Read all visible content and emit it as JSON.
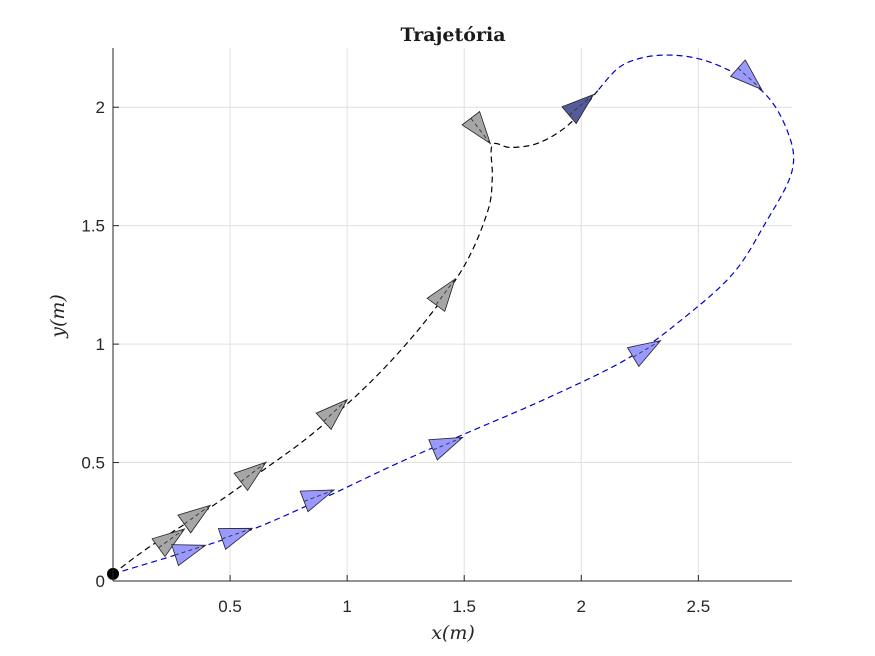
{
  "chart_data": {
    "type": "line",
    "title": "Trajetória",
    "xlabel": "x(m)",
    "ylabel": "y(m)",
    "xlim": [
      0.0,
      2.9
    ],
    "ylim": [
      0.0,
      2.25
    ],
    "grid": true,
    "x_ticks": [
      {
        "value": 0.5,
        "label": "0.5"
      },
      {
        "value": 1,
        "label": "1"
      },
      {
        "value": 1.5,
        "label": "1.5"
      },
      {
        "value": 2,
        "label": "2"
      },
      {
        "value": 2.5,
        "label": "2.5"
      }
    ],
    "y_ticks": [
      {
        "value": 0,
        "label": "0"
      },
      {
        "value": 0.5,
        "label": "0.5"
      },
      {
        "value": 1,
        "label": "1"
      },
      {
        "value": 1.5,
        "label": "1.5"
      },
      {
        "value": 2,
        "label": "2"
      }
    ],
    "start_point": {
      "x": 0.0,
      "y": 0.03,
      "color": "#000000"
    },
    "series": [
      {
        "line_color": "#000000",
        "line_style": "dashed",
        "points": [
          {
            "x": 0.0,
            "y": 0.03
          },
          {
            "x": 0.15,
            "y": 0.14
          },
          {
            "x": 0.4,
            "y": 0.3
          },
          {
            "x": 0.63,
            "y": 0.46
          },
          {
            "x": 0.85,
            "y": 0.62
          },
          {
            "x": 1.1,
            "y": 0.84
          },
          {
            "x": 1.32,
            "y": 1.08
          },
          {
            "x": 1.5,
            "y": 1.33
          },
          {
            "x": 1.6,
            "y": 1.56
          },
          {
            "x": 1.62,
            "y": 1.7
          },
          {
            "x": 1.62,
            "y": 1.84
          },
          {
            "x": 1.7,
            "y": 1.83
          },
          {
            "x": 1.82,
            "y": 1.85
          },
          {
            "x": 1.95,
            "y": 1.93
          },
          {
            "x": 2.07,
            "y": 2.07
          }
        ],
        "markers": [
          {
            "x": 0.25,
            "y": 0.18,
            "dx": 1,
            "dy": 0.72,
            "fill": "#a6a6a6"
          },
          {
            "x": 0.36,
            "y": 0.28,
            "dx": 1,
            "dy": 0.72,
            "fill": "#a6a6a6"
          },
          {
            "x": 0.6,
            "y": 0.46,
            "dx": 1,
            "dy": 0.78,
            "fill": "#a6a6a6"
          },
          {
            "x": 0.95,
            "y": 0.72,
            "dx": 1,
            "dy": 0.92,
            "fill": "#a6a6a6"
          },
          {
            "x": 1.42,
            "y": 1.22,
            "dx": 1,
            "dy": 1.35,
            "fill": "#a6a6a6"
          },
          {
            "x": 1.57,
            "y": 1.9,
            "dx": 1,
            "dy": -1.3,
            "fill": "#a6a6a6"
          },
          {
            "x": 2.0,
            "y": 2.01,
            "dx": 1,
            "dy": 0.85,
            "fill": "#545b9a"
          }
        ]
      },
      {
        "line_color": "#0000cc",
        "line_style": "dashed",
        "points": [
          {
            "x": 0.0,
            "y": 0.03
          },
          {
            "x": 0.3,
            "y": 0.12
          },
          {
            "x": 0.6,
            "y": 0.22
          },
          {
            "x": 0.9,
            "y": 0.35
          },
          {
            "x": 1.2,
            "y": 0.49
          },
          {
            "x": 1.5,
            "y": 0.62
          },
          {
            "x": 1.85,
            "y": 0.77
          },
          {
            "x": 2.2,
            "y": 0.94
          },
          {
            "x": 2.45,
            "y": 1.12
          },
          {
            "x": 2.65,
            "y": 1.3
          },
          {
            "x": 2.78,
            "y": 1.5
          },
          {
            "x": 2.9,
            "y": 1.73
          },
          {
            "x": 2.88,
            "y": 1.9
          },
          {
            "x": 2.77,
            "y": 2.07
          },
          {
            "x": 2.55,
            "y": 2.19
          },
          {
            "x": 2.35,
            "y": 2.22
          },
          {
            "x": 2.18,
            "y": 2.18
          },
          {
            "x": 2.07,
            "y": 2.07
          }
        ],
        "markers": [
          {
            "x": 0.33,
            "y": 0.13,
            "dx": 1,
            "dy": 0.32,
            "fill": "#9999ff"
          },
          {
            "x": 0.53,
            "y": 0.2,
            "dx": 1,
            "dy": 0.35,
            "fill": "#9999ff"
          },
          {
            "x": 0.88,
            "y": 0.36,
            "dx": 1,
            "dy": 0.38,
            "fill": "#9999ff"
          },
          {
            "x": 1.43,
            "y": 0.58,
            "dx": 1,
            "dy": 0.42,
            "fill": "#9999ff"
          },
          {
            "x": 2.28,
            "y": 0.98,
            "dx": 1,
            "dy": 0.6,
            "fill": "#9999ff"
          },
          {
            "x": 2.72,
            "y": 2.12,
            "dx": 1,
            "dy": -0.9,
            "fill": "#9999ff"
          }
        ]
      }
    ],
    "colors": {
      "axis": "#262626",
      "grid": "#e0e0e0"
    }
  }
}
